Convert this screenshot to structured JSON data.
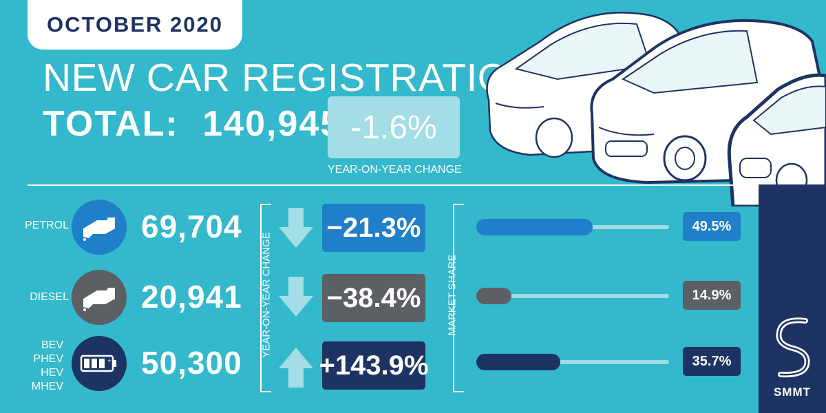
{
  "header": {
    "month": "OCTOBER 2020",
    "title": "NEW CAR REGISTRATIONS",
    "total_label": "TOTAL:",
    "total_value": "140,945",
    "yoy_change": "-1.6%",
    "yoy_caption": "YEAR-ON-YEAR CHANGE"
  },
  "section_labels": {
    "yoy": "YEAR-ON-YEAR CHANGE",
    "share": "MARKET SHARE"
  },
  "brand": {
    "name": "SMMT"
  },
  "colors": {
    "background": "#33b8cc",
    "navy": "#1d3363",
    "petrol_blue": "#1f7fc8",
    "diesel_grey": "#5c5f63",
    "light_teal": "#a3dde6"
  },
  "icons": {
    "petrol": "fuel-nozzle-icon",
    "diesel": "fuel-nozzle-icon",
    "electrified": "battery-icon",
    "arrow_down": "arrow-down-icon",
    "arrow_up": "arrow-up-icon",
    "logo": "smmt-logo-icon"
  },
  "fuels": [
    {
      "labels": [
        "PETROL"
      ],
      "count": "69,704",
      "change": "−21.3%",
      "direction": "down",
      "share_label": "49.5%",
      "share_value": 49.5
    },
    {
      "labels": [
        "DIESEL"
      ],
      "count": "20,941",
      "change": "−38.4%",
      "direction": "down",
      "share_label": "14.9%",
      "share_value": 14.9
    },
    {
      "labels": [
        "BEV",
        "PHEV",
        "HEV",
        "MHEV"
      ],
      "count": "50,300",
      "change": "+143.9%",
      "direction": "up",
      "share_label": "35.7%",
      "share_value": 35.7
    }
  ]
}
